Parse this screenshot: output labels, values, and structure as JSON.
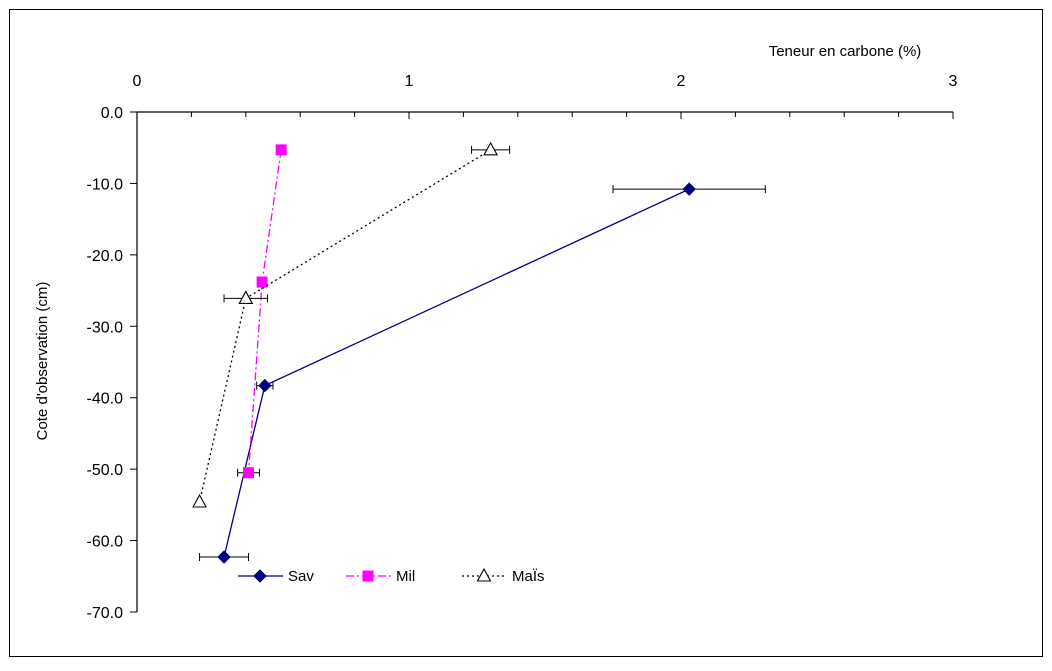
{
  "chart_data": {
    "type": "line",
    "title": "",
    "xlabel": "Teneur en carbone (%)",
    "ylabel": "Cote d'observation (cm)",
    "xlim": [
      0,
      3
    ],
    "ylim": [
      -70,
      0
    ],
    "x_ticks": [
      "0",
      "1",
      "2",
      "3"
    ],
    "y_ticks": [
      "0.0",
      "-10.0",
      "-20.0",
      "-30.0",
      "-40.0",
      "-50.0",
      "-60.0",
      "-70.0"
    ],
    "x_axis_position": "top",
    "grid": false,
    "legend_position": "bottom-left",
    "series": [
      {
        "name": "Sav",
        "color": "#000080",
        "marker": "diamond",
        "line_style": "solid",
        "points": [
          {
            "x": 2.03,
            "y": -10.8,
            "xerr": 0.28
          },
          {
            "x": 0.47,
            "y": -38.3,
            "xerr": 0.03
          },
          {
            "x": 0.32,
            "y": -62.3,
            "xerr": 0.09
          }
        ]
      },
      {
        "name": "Mil",
        "color": "#ff00ff",
        "marker": "square",
        "line_style": "dash-dot",
        "points": [
          {
            "x": 0.53,
            "y": -5.3,
            "xerr": 0.0
          },
          {
            "x": 0.46,
            "y": -23.8,
            "xerr": 0.0
          },
          {
            "x": 0.41,
            "y": -50.5,
            "xerr": 0.04
          }
        ]
      },
      {
        "name": "MaÏs",
        "color": "#000000",
        "marker": "triangle-open",
        "line_style": "dotted",
        "points": [
          {
            "x": 1.3,
            "y": -5.3,
            "xerr": 0.07
          },
          {
            "x": 0.4,
            "y": -26.1,
            "xerr": 0.08
          },
          {
            "x": 0.23,
            "y": -54.6,
            "xerr": 0.0
          }
        ]
      }
    ]
  }
}
